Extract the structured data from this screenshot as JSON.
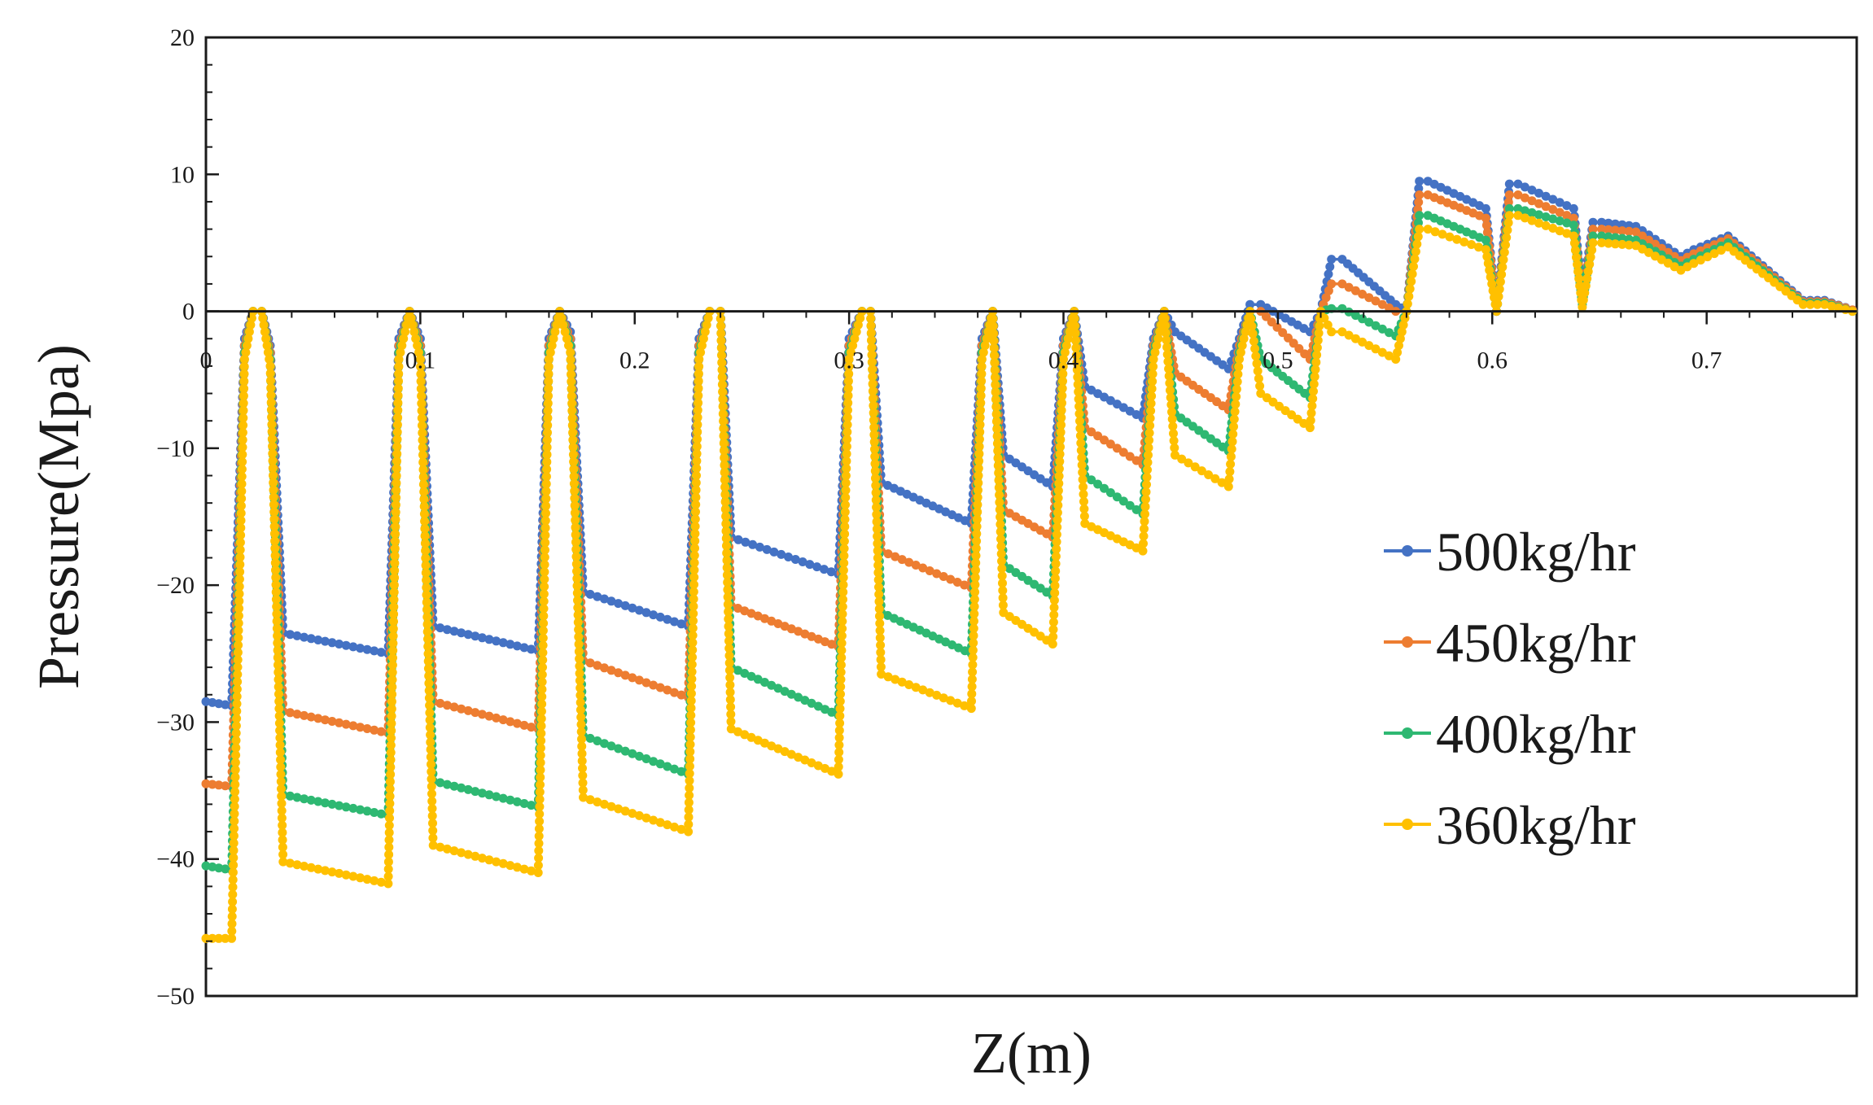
{
  "chart_data": {
    "type": "line",
    "title": "",
    "xlabel": "Z(m)",
    "ylabel": "Pressure(Mpa)",
    "xlim": [
      0,
      0.77
    ],
    "ylim": [
      -50,
      20
    ],
    "xticks": [
      {
        "value": 0,
        "label": "0"
      },
      {
        "value": 0.1,
        "label": "0.1"
      },
      {
        "value": 0.2,
        "label": "0.2"
      },
      {
        "value": 0.3,
        "label": "0.3"
      },
      {
        "value": 0.4,
        "label": "0.4"
      },
      {
        "value": 0.5,
        "label": "0.5"
      },
      {
        "value": 0.6,
        "label": "0.6"
      },
      {
        "value": 0.7,
        "label": "0.7"
      }
    ],
    "yticks": [
      {
        "value": 20,
        "label": "20"
      },
      {
        "value": 10,
        "label": "10"
      },
      {
        "value": 0,
        "label": "0"
      },
      {
        "value": -10,
        "label": "−10"
      },
      {
        "value": -20,
        "label": "−20"
      },
      {
        "value": -30,
        "label": "−30"
      },
      {
        "value": -40,
        "label": "−40"
      },
      {
        "value": -50,
        "label": "−50"
      }
    ],
    "grid": false,
    "legend_position": "right",
    "x": [
      0,
      0.012,
      0.018,
      0.022,
      0.026,
      0.03,
      0.036,
      0.085,
      0.09,
      0.095,
      0.1,
      0.106,
      0.155,
      0.16,
      0.165,
      0.17,
      0.176,
      0.225,
      0.23,
      0.235,
      0.24,
      0.245,
      0.295,
      0.3,
      0.306,
      0.31,
      0.315,
      0.357,
      0.362,
      0.367,
      0.372,
      0.395,
      0.4,
      0.405,
      0.41,
      0.437,
      0.442,
      0.447,
      0.452,
      0.477,
      0.482,
      0.487,
      0.492,
      0.515,
      0.52,
      0.525,
      0.53,
      0.555,
      0.56,
      0.566,
      0.57,
      0.597,
      0.602,
      0.608,
      0.612,
      0.638,
      0.642,
      0.647,
      0.651,
      0.667,
      0.688,
      0.694,
      0.71,
      0.745,
      0.755,
      0.768
    ],
    "series": [
      {
        "name": "500kg/hr",
        "color": "#4472C4",
        "values": [
          -28.5,
          -28.8,
          -2,
          0,
          0,
          -2.5,
          -23.5,
          -25,
          -2,
          0,
          -2,
          -23,
          -24.8,
          -2,
          0,
          -1.5,
          -20.5,
          -23,
          -2,
          0,
          0,
          -16.5,
          -19.2,
          -2,
          0,
          0,
          -12.5,
          -15.5,
          -2,
          0,
          -10.5,
          -12.8,
          -2,
          0,
          -5.5,
          -7.8,
          -2,
          0,
          -1.5,
          -4.2,
          -2,
          0.5,
          0.5,
          -1.5,
          0,
          3.8,
          3.8,
          0.5,
          0,
          9.5,
          9.5,
          7.5,
          0,
          9.3,
          9.3,
          7.5,
          1,
          6.5,
          6.5,
          6.2,
          4,
          4.5,
          5.5,
          0.8,
          0.8,
          0.1
        ]
      },
      {
        "name": "450kg/hr",
        "color": "#ED7D31",
        "values": [
          -34.5,
          -34.7,
          -2.5,
          0,
          0,
          -3,
          -29.2,
          -30.8,
          -2.5,
          0,
          -2.5,
          -28.5,
          -30.5,
          -2.5,
          0,
          -2,
          -25.5,
          -28.2,
          -2.5,
          0,
          0,
          -21.5,
          -24.5,
          -2.5,
          0,
          0,
          -17.5,
          -20.2,
          -2.5,
          0,
          -14.5,
          -16.5,
          -2.5,
          0,
          -8.5,
          -11.2,
          -2.5,
          0,
          -4.5,
          -7.2,
          -2.5,
          0,
          0,
          -3.5,
          0,
          2,
          2,
          0,
          0,
          8.5,
          8.5,
          6.8,
          0,
          8.5,
          8.5,
          6.8,
          0.7,
          6,
          6,
          5.8,
          3.7,
          4.2,
          5.3,
          0.7,
          0.7,
          0.1
        ]
      },
      {
        "name": "400kg/hr",
        "color": "#2EB872",
        "values": [
          -40.5,
          -40.8,
          -3,
          0,
          0,
          -3.5,
          -35.3,
          -36.8,
          -3,
          0,
          -3,
          -34.3,
          -36.2,
          -3,
          0,
          -2.5,
          -31,
          -33.8,
          -3,
          0,
          0,
          -26,
          -29.5,
          -3,
          0,
          0,
          -22,
          -25,
          -3,
          0,
          -18.5,
          -20.8,
          -3,
          0,
          -12,
          -14.8,
          -3,
          0,
          -7.5,
          -10.2,
          -3,
          0,
          -3.5,
          -6.3,
          0,
          0.2,
          0.2,
          -1.8,
          0,
          7,
          7,
          5.2,
          0,
          7.5,
          7.5,
          6.3,
          0.5,
          5.5,
          5.5,
          5.2,
          3.3,
          3.8,
          5,
          0.6,
          0.6,
          0
        ]
      },
      {
        "name": "360kg/hr",
        "color": "#FFC000",
        "values": [
          -45.8,
          -45.8,
          -3.5,
          0,
          0,
          -4,
          -40.2,
          -41.8,
          -3.5,
          0,
          -3.5,
          -39,
          -41,
          -3.5,
          0,
          -3,
          -35.5,
          -38,
          -3.5,
          0,
          0,
          -30.5,
          -33.8,
          -3.5,
          0,
          0,
          -26.5,
          -29,
          -3.5,
          0,
          -22,
          -24.3,
          -3.5,
          0,
          -15.5,
          -17.5,
          -3.5,
          0,
          -10.5,
          -12.8,
          -3.5,
          0,
          -6,
          -8.5,
          0,
          -1.5,
          -1.5,
          -3.5,
          0,
          6,
          6,
          4.5,
          0,
          7,
          7,
          5.5,
          0.3,
          5,
          5,
          4.8,
          3,
          3.5,
          4.7,
          0.5,
          0.5,
          0
        ]
      }
    ]
  }
}
